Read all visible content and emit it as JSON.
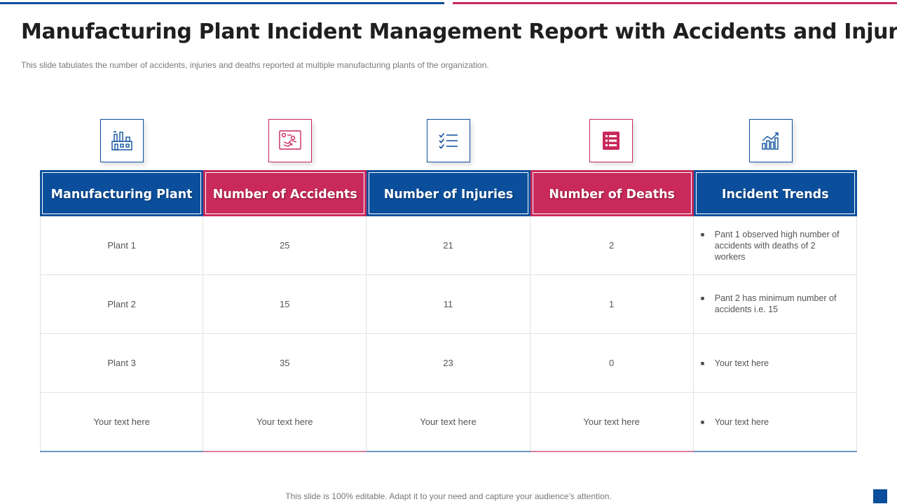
{
  "title": "Manufacturing Plant Incident Management Report with Accidents and Injuries",
  "subtitle": "This slide tabulates the number of accidents, injuries and deaths reported at multiple manufacturing plants of the organization.",
  "icons": [
    "factory-icon",
    "accident-icon",
    "checklist-icon",
    "list-report-icon",
    "trend-chart-icon"
  ],
  "colors": {
    "blue": "#0b4f9c",
    "red": "#c9295b"
  },
  "table": {
    "headers": [
      "Manufacturing Plant",
      "Number of Accidents",
      "Number of Injuries",
      "Number of Deaths",
      "Incident Trends"
    ],
    "rows": [
      {
        "plant": "Plant 1",
        "accidents": "25",
        "injuries": "21",
        "deaths": "2",
        "trend": "Pant 1 observed  high number of accidents with deaths of 2 workers"
      },
      {
        "plant": "Plant 2",
        "accidents": "15",
        "injuries": "11",
        "deaths": "1",
        "trend": "Pant 2 has minimum number of accidents i.e. 15"
      },
      {
        "plant": "Plant 3",
        "accidents": "35",
        "injuries": "23",
        "deaths": "0",
        "trend": "Your text here"
      },
      {
        "plant": "Your text here",
        "accidents": "Your text here",
        "injuries": "Your text here",
        "deaths": "Your text here",
        "trend": "Your text here"
      }
    ]
  },
  "footer": "This slide is 100% editable. Adapt it to your need and capture your audience’s attention."
}
